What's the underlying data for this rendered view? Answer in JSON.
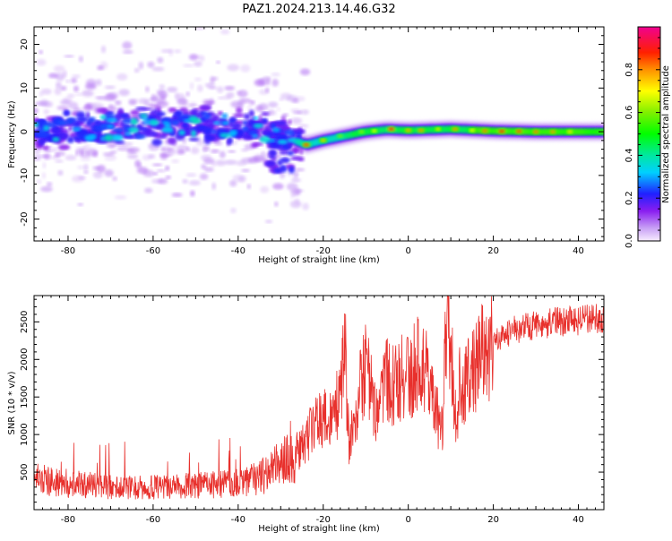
{
  "title": "PAZ1.2024.213.14.46.G32",
  "chart_data": [
    {
      "type": "heatmap",
      "xlabel": "Height of straight line (km)",
      "ylabel": "Frequency (Hz)",
      "xlim": [
        -88,
        46
      ],
      "ylim": [
        -25,
        24
      ],
      "x_ticks": [
        -80,
        -60,
        -40,
        -20,
        0,
        20,
        40
      ],
      "y_ticks": [
        -20,
        -10,
        0,
        10,
        20
      ],
      "colorbar": {
        "label": "Normalized spectral amplitude",
        "range": [
          0,
          1
        ],
        "ticks": [
          0.0,
          0.2,
          0.4,
          0.6,
          0.8
        ],
        "colormap": "gist_ncar"
      },
      "ridge": {
        "description_points_x": [
          -88,
          -70,
          -50,
          -40,
          -32,
          -28,
          -24,
          -20,
          -15,
          -10,
          -5,
          0,
          10,
          20,
          30,
          46
        ],
        "description_points_freq": [
          0,
          1,
          2,
          1.5,
          0,
          -1.5,
          -3,
          -2,
          -1,
          0,
          0.5,
          0.3,
          0.6,
          0.2,
          0,
          0
        ]
      }
    },
    {
      "type": "line",
      "xlabel": "Height of straight line (km)",
      "ylabel": "SNR (10 * v/v)",
      "xlim": [
        -88,
        46
      ],
      "ylim": [
        0,
        2850
      ],
      "x_ticks": [
        -80,
        -60,
        -40,
        -20,
        0,
        20,
        40
      ],
      "y_ticks": [
        500,
        1000,
        1500,
        2000,
        2500
      ],
      "series": [
        {
          "color": "#e8302c",
          "x": [
            -88,
            -80,
            -70,
            -60,
            -50,
            -40,
            -35,
            -30,
            -26,
            -24,
            -22,
            -20,
            -18,
            -16,
            -15,
            -14,
            -12,
            -10,
            -8,
            -6,
            -5,
            -4,
            -2,
            0,
            2,
            4,
            5,
            6,
            7,
            8,
            9,
            10,
            11,
            12,
            14,
            16,
            18,
            20,
            22,
            25,
            30,
            35,
            40,
            46
          ],
          "values": [
            400,
            350,
            300,
            300,
            320,
            350,
            420,
            600,
            750,
            950,
            1100,
            1200,
            1300,
            1500,
            2300,
            900,
            1400,
            2000,
            1300,
            1500,
            1700,
            1600,
            1750,
            1800,
            1900,
            2000,
            1600,
            1500,
            1200,
            1000,
            2700,
            2200,
            1200,
            1600,
            1800,
            1900,
            2100,
            2200,
            2300,
            2400,
            2450,
            2500,
            2520,
            2550
          ]
        }
      ]
    }
  ]
}
